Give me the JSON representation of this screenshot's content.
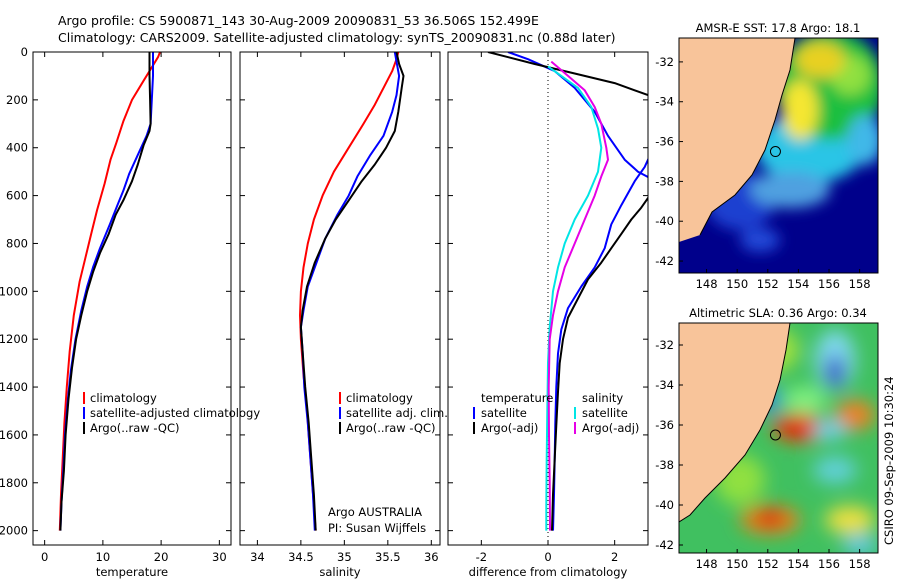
{
  "header": {
    "line1": "Argo profile: CS 5900871_143 30-Aug-2009 20090831_53 36.506S 152.499E",
    "line2": "Climatology: CARS2009. Satellite-adjusted climatology: synTS_20090831.nc (0.88d later)"
  },
  "side_label": "CSIRO 09-Sep-2009 10:30:24",
  "colors": {
    "red": "#ff0000",
    "blue": "#0000ff",
    "black": "#000000",
    "cyan": "#00e5e5",
    "magenta": "#e600e6",
    "land": "#f8c49a"
  },
  "chart_data": [
    {
      "id": "temperature",
      "type": "line",
      "xlabel": "temperature",
      "ylabel": "",
      "xlim": [
        -2,
        32
      ],
      "ylim": [
        2060,
        0
      ],
      "xticks": [
        "0",
        "10",
        "20",
        "30"
      ],
      "xtick_values": [
        0,
        10,
        20,
        30
      ],
      "yticks": [
        "0",
        "200",
        "400",
        "600",
        "800",
        "1000",
        "1200",
        "1400",
        "1600",
        "1800",
        "2000"
      ],
      "ytick_values": [
        0,
        200,
        400,
        600,
        800,
        1000,
        1200,
        1400,
        1600,
        1800,
        2000
      ],
      "legend": {
        "items": [
          "climatology",
          "satellite-adjusted climatology",
          "Argo(..raw -QC)"
        ]
      },
      "series": [
        {
          "color": "red",
          "points": [
            [
              19.8,
              0
            ],
            [
              19.5,
              20
            ],
            [
              18.5,
              60
            ],
            [
              17,
              120
            ],
            [
              15,
              200
            ],
            [
              13.5,
              290
            ],
            [
              12.3,
              380
            ],
            [
              11.3,
              450
            ],
            [
              10.3,
              550
            ],
            [
              9,
              660
            ],
            [
              8,
              760
            ],
            [
              7,
              860
            ],
            [
              6,
              960
            ],
            [
              5,
              1100
            ],
            [
              4.3,
              1250
            ],
            [
              3.8,
              1400
            ],
            [
              3.4,
              1550
            ],
            [
              3.1,
              1700
            ],
            [
              2.8,
              1850
            ],
            [
              2.6,
              2000
            ]
          ]
        },
        {
          "color": "blue",
          "points": [
            [
              18.6,
              0
            ],
            [
              18.6,
              100
            ],
            [
              18.4,
              200
            ],
            [
              18.2,
              300
            ],
            [
              17.5,
              350
            ],
            [
              16,
              430
            ],
            [
              14.5,
              510
            ],
            [
              13.5,
              580
            ],
            [
              12.5,
              640
            ],
            [
              11.2,
              720
            ],
            [
              9.5,
              820
            ],
            [
              8.3,
              900
            ],
            [
              7.3,
              980
            ],
            [
              6.3,
              1080
            ],
            [
              5.3,
              1200
            ],
            [
              4.5,
              1330
            ],
            [
              4,
              1450
            ],
            [
              3.5,
              1600
            ],
            [
              3.2,
              1750
            ],
            [
              2.9,
              1880
            ],
            [
              2.7,
              2000
            ]
          ]
        },
        {
          "color": "black",
          "points": [
            [
              18,
              0
            ],
            [
              18,
              100
            ],
            [
              18.1,
              200
            ],
            [
              18.2,
              300
            ],
            [
              18,
              330
            ],
            [
              17,
              390
            ],
            [
              16,
              470
            ],
            [
              15,
              540
            ],
            [
              13.5,
              620
            ],
            [
              12.2,
              680
            ],
            [
              11,
              760
            ],
            [
              9.5,
              840
            ],
            [
              8.3,
              920
            ],
            [
              7.3,
              1000
            ],
            [
              6.3,
              1100
            ],
            [
              5.4,
              1200
            ],
            [
              4.7,
              1320
            ],
            [
              4.1,
              1450
            ],
            [
              3.6,
              1600
            ],
            [
              3.3,
              1750
            ],
            [
              2.9,
              1880
            ],
            [
              2.7,
              2000
            ]
          ]
        }
      ]
    },
    {
      "id": "salinity",
      "type": "line",
      "xlabel": "salinity",
      "ylabel": "",
      "xlim": [
        33.8,
        36.1
      ],
      "ylim": [
        2060,
        0
      ],
      "xticks": [
        "34",
        "34.5",
        "35",
        "35.5",
        "36"
      ],
      "xtick_values": [
        34,
        34.5,
        35,
        35.5,
        36
      ],
      "legend": {
        "items": [
          "climatology",
          "satellite adj. clim.",
          "Argo(..raw -QC)"
        ]
      },
      "annotation": {
        "line1": "Argo AUSTRALIA",
        "line2": "PI: Susan Wijffels"
      },
      "series": [
        {
          "color": "red",
          "points": [
            [
              35.62,
              0
            ],
            [
              35.6,
              30
            ],
            [
              35.55,
              80
            ],
            [
              35.45,
              150
            ],
            [
              35.35,
              220
            ],
            [
              35.22,
              300
            ],
            [
              35.05,
              400
            ],
            [
              34.88,
              500
            ],
            [
              34.75,
              600
            ],
            [
              34.65,
              700
            ],
            [
              34.58,
              800
            ],
            [
              34.53,
              900
            ],
            [
              34.5,
              1000
            ],
            [
              34.49,
              1100
            ],
            [
              34.5,
              1200
            ],
            [
              34.53,
              1350
            ],
            [
              34.57,
              1500
            ],
            [
              34.6,
              1650
            ],
            [
              34.63,
              1800
            ],
            [
              34.66,
              1950
            ],
            [
              34.67,
              2000
            ]
          ]
        },
        {
          "color": "blue",
          "points": [
            [
              35.58,
              0
            ],
            [
              35.6,
              40
            ],
            [
              35.63,
              100
            ],
            [
              35.6,
              180
            ],
            [
              35.55,
              250
            ],
            [
              35.45,
              350
            ],
            [
              35.3,
              430
            ],
            [
              35.15,
              520
            ],
            [
              35.05,
              600
            ],
            [
              34.92,
              680
            ],
            [
              34.78,
              780
            ],
            [
              34.68,
              880
            ],
            [
              34.58,
              980
            ],
            [
              34.53,
              1080
            ],
            [
              34.5,
              1150
            ],
            [
              34.52,
              1250
            ],
            [
              34.54,
              1400
            ],
            [
              34.58,
              1550
            ],
            [
              34.61,
              1700
            ],
            [
              34.64,
              1850
            ],
            [
              34.66,
              2000
            ]
          ]
        },
        {
          "color": "black",
          "points": [
            [
              35.6,
              0
            ],
            [
              35.63,
              50
            ],
            [
              35.68,
              100
            ],
            [
              35.66,
              150
            ],
            [
              35.64,
              200
            ],
            [
              35.62,
              250
            ],
            [
              35.58,
              330
            ],
            [
              35.48,
              400
            ],
            [
              35.35,
              470
            ],
            [
              35.2,
              540
            ],
            [
              35.05,
              620
            ],
            [
              34.9,
              700
            ],
            [
              34.78,
              780
            ],
            [
              34.66,
              880
            ],
            [
              34.57,
              980
            ],
            [
              34.52,
              1080
            ],
            [
              34.5,
              1150
            ],
            [
              34.52,
              1250
            ],
            [
              34.55,
              1400
            ],
            [
              34.59,
              1550
            ],
            [
              34.62,
              1700
            ],
            [
              34.65,
              1850
            ],
            [
              34.67,
              2000
            ]
          ]
        }
      ]
    },
    {
      "id": "difference",
      "type": "line",
      "xlabel": "difference from climatology",
      "ylabel": "",
      "xlim": [
        -3,
        3
      ],
      "ylim": [
        2060,
        0
      ],
      "xticks": [
        "-2",
        "0",
        "2"
      ],
      "xtick_values": [
        -2,
        0,
        2
      ],
      "legend": {
        "left_title": "temperature",
        "left_items": [
          "satellite",
          "Argo(-adj)"
        ],
        "right_title": "salinity",
        "right_items": [
          "satellite",
          "Argo(-adj)"
        ]
      },
      "series": [
        {
          "name": "temperature satellite",
          "color": "blue",
          "points": [
            [
              -1.2,
              0
            ],
            [
              -0.6,
              30
            ],
            [
              0.2,
              80
            ],
            [
              0.8,
              150
            ],
            [
              1.4,
              250
            ],
            [
              1.8,
              350
            ],
            [
              2.3,
              450
            ],
            [
              2.7,
              500
            ],
            [
              3.1,
              530
            ]
          ]
        },
        {
          "name": "temperature Argo(-adj)",
          "color": "black",
          "points": [
            [
              -1.8,
              0
            ],
            [
              -0.4,
              50
            ],
            [
              0.8,
              90
            ],
            [
              2,
              130
            ],
            [
              3.2,
              190
            ]
          ]
        },
        {
          "name": "salinity satellite",
          "color": "cyan",
          "points": [
            [
              0,
              60
            ],
            [
              0.4,
              100
            ],
            [
              0.9,
              150
            ],
            [
              1.3,
              230
            ],
            [
              1.5,
              320
            ],
            [
              1.6,
              400
            ],
            [
              1.5,
              500
            ],
            [
              1.2,
              600
            ],
            [
              0.8,
              700
            ],
            [
              0.5,
              800
            ],
            [
              0.3,
              900
            ],
            [
              0.15,
              1000
            ],
            [
              0.05,
              1150
            ],
            [
              0,
              1300
            ],
            [
              -0.02,
              1500
            ],
            [
              -0.04,
              1700
            ],
            [
              -0.05,
              1900
            ],
            [
              -0.05,
              2000
            ]
          ]
        },
        {
          "name": "salinity Argo(-adj)",
          "color": "magenta",
          "points": [
            [
              0.1,
              40
            ],
            [
              0.6,
              100
            ],
            [
              1.1,
              160
            ],
            [
              1.4,
              230
            ],
            [
              1.6,
              300
            ],
            [
              1.75,
              400
            ],
            [
              1.8,
              450
            ],
            [
              1.6,
              520
            ],
            [
              1.4,
              600
            ],
            [
              1.1,
              700
            ],
            [
              0.8,
              800
            ],
            [
              0.5,
              900
            ],
            [
              0.3,
              1000
            ],
            [
              0.15,
              1100
            ],
            [
              0.05,
              1200
            ],
            [
              0.02,
              1400
            ],
            [
              0.03,
              1600
            ],
            [
              0.05,
              1800
            ],
            [
              0.06,
              2000
            ]
          ]
        },
        {
          "name": "temperature satellite deep",
          "color": "blue",
          "points": [
            [
              3.1,
              420
            ],
            [
              2.9,
              480
            ],
            [
              2.6,
              540
            ],
            [
              2.2,
              640
            ],
            [
              1.9,
              720
            ],
            [
              1.7,
              820
            ],
            [
              1.4,
              900
            ],
            [
              1,
              980
            ],
            [
              0.6,
              1070
            ],
            [
              0.4,
              1160
            ],
            [
              0.3,
              1260
            ],
            [
              0.25,
              1400
            ],
            [
              0.22,
              1550
            ],
            [
              0.2,
              1700
            ],
            [
              0.18,
              1850
            ],
            [
              0.15,
              2000
            ]
          ]
        },
        {
          "name": "temperature Argo(-adj) deep",
          "color": "black",
          "points": [
            [
              3.1,
              590
            ],
            [
              2.8,
              650
            ],
            [
              2.5,
              700
            ],
            [
              2.2,
              760
            ],
            [
              1.9,
              820
            ],
            [
              1.6,
              880
            ],
            [
              1.2,
              950
            ],
            [
              0.9,
              1030
            ],
            [
              0.6,
              1110
            ],
            [
              0.45,
              1200
            ],
            [
              0.35,
              1300
            ],
            [
              0.3,
              1420
            ],
            [
              0.25,
              1560
            ],
            [
              0.2,
              1700
            ],
            [
              0.15,
              1850
            ],
            [
              0.12,
              2000
            ]
          ]
        }
      ]
    },
    {
      "id": "sst_map",
      "type": "heatmap",
      "title": "AMSR-E SST: 17.8  Argo: 18.1",
      "xlim": [
        146.2,
        159.2
      ],
      "ylim": [
        -42.6,
        -30.8
      ],
      "xticks": [
        "148",
        "150",
        "152",
        "154",
        "156",
        "158"
      ],
      "xtick_values": [
        148,
        150,
        152,
        154,
        156,
        158
      ],
      "yticks": [
        "-32",
        "-34",
        "-36",
        "-38",
        "-40",
        "-42"
      ],
      "ytick_values": [
        -32,
        -34,
        -36,
        -38,
        -40,
        -42
      ],
      "marker": [
        152.5,
        -36.5
      ]
    },
    {
      "id": "sla_map",
      "type": "heatmap",
      "title": "Altimetric SLA: 0.36  Argo: 0.34",
      "xlim": [
        146.2,
        159.2
      ],
      "ylim": [
        -42.4,
        -30.9
      ],
      "xticks": [
        "148",
        "150",
        "152",
        "154",
        "156",
        "158"
      ],
      "xtick_values": [
        148,
        150,
        152,
        154,
        156,
        158
      ],
      "yticks": [
        "-32",
        "-34",
        "-36",
        "-38",
        "-40",
        "-42"
      ],
      "ytick_values": [
        -32,
        -34,
        -36,
        -38,
        -40,
        -42
      ],
      "marker": [
        152.5,
        -36.5
      ]
    }
  ]
}
